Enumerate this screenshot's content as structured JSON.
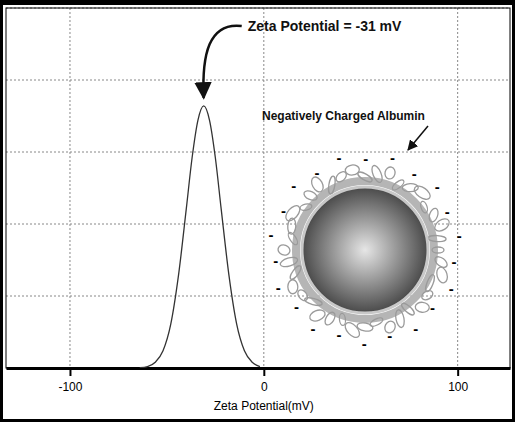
{
  "chart_data": {
    "type": "line",
    "x": [
      -64,
      -60,
      -56,
      -52,
      -48,
      -44,
      -40,
      -37,
      -34,
      -31,
      -28,
      -25,
      -22,
      -18,
      -14,
      -10,
      -6,
      -2
    ],
    "values": [
      0.004,
      0.02,
      0.08,
      0.24,
      0.61,
      1.29,
      2.21,
      2.92,
      3.44,
      3.64,
      3.44,
      2.92,
      2.21,
      1.29,
      0.61,
      0.24,
      0.08,
      0.02
    ],
    "color": "#333333",
    "xlim": [
      -133,
      127
    ],
    "xticks": [
      -100,
      0,
      100
    ],
    "ylim": [
      0,
      5
    ],
    "yticks": [
      0,
      1,
      2,
      3,
      4,
      5
    ],
    "grid": true,
    "tick_labels": "x",
    "xlabel": "Zeta Potential(mV)",
    "annotations": [
      {
        "text": "Zeta Potential = -31 mV"
      },
      {
        "text": "Negatively Charged Albumin"
      }
    ],
    "particle_charge": "-"
  }
}
